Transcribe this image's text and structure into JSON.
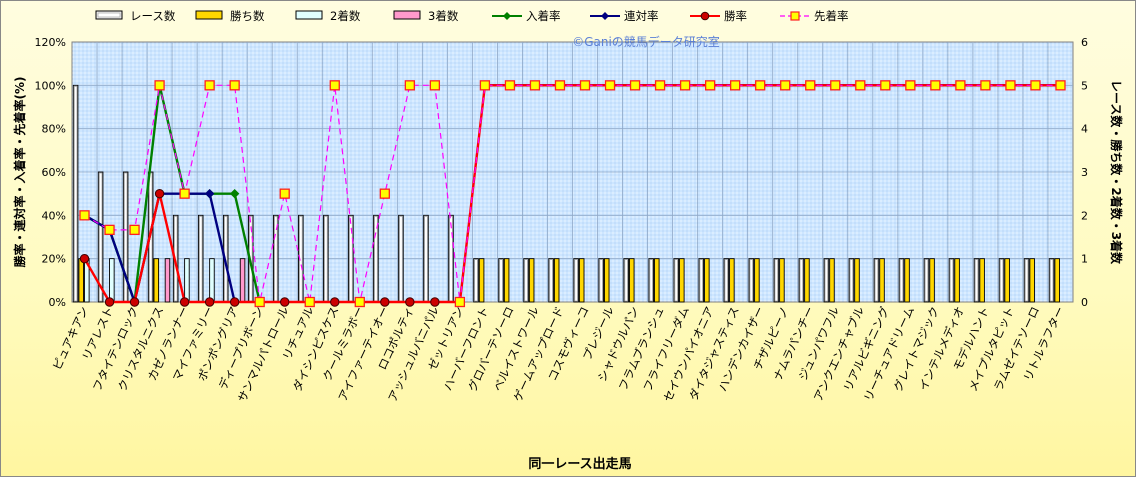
{
  "chart_data": {
    "type": "bar+line",
    "watermark": "©Ganiの競馬データ研究室",
    "xlabel": "同一レース出走馬",
    "ylabel_left": "勝率・連対率・入着率・先着率(%)",
    "ylabel_right": "レース数・勝ち数・2着数・3着数",
    "ylim_left": [
      0,
      120
    ],
    "ylim_right": [
      0,
      6
    ],
    "left_ticks": [
      "0%",
      "20%",
      "40%",
      "60%",
      "80%",
      "100%",
      "120%"
    ],
    "right_ticks": [
      "0",
      "1",
      "2",
      "3",
      "4",
      "5",
      "6"
    ],
    "grid": true,
    "legend_position": "top",
    "categories": [
      "ピュアキアン",
      "リアレスト",
      "フタイテンロック",
      "クリスタルニクス",
      "カゼノランナー",
      "マイファミリー",
      "ポンポングリア",
      "ディープリボーン",
      "サンマルパトロール",
      "リチュアル",
      "ダイシンピスケス",
      "クールミラボー",
      "アイファーテイオー",
      "ロコポルティ",
      "アッシュルバニパル",
      "ゼットリアン",
      "ハーバーフロント",
      "グロバーテソーロ",
      "ベルイストワール",
      "ゲームアップロード",
      "コスモヴィーコ",
      "プレジール",
      "シャドウルパン",
      "フラムブランシュ",
      "フライフリーダム",
      "セイウンパイオニア",
      "ダイタジャスティス",
      "ハンデンカイザー",
      "チザルピーノ",
      "ナムラパンチー",
      "ジュンパワフル",
      "アンクエンチャブル",
      "リアルビギニング",
      "リーチュアドリーム",
      "グレイトマジック",
      "インテルメディオ",
      "モデルハント",
      "メイプルタピット",
      "ラムゼイテソーロ",
      "リトルラフター"
    ],
    "series": [
      {
        "name": "レース数",
        "axis": "right",
        "kind": "bar",
        "color": "#ffffff",
        "values": [
          5,
          3,
          3,
          3,
          2,
          2,
          2,
          2,
          2,
          2,
          2,
          2,
          2,
          2,
          2,
          2,
          1,
          1,
          1,
          1,
          1,
          1,
          1,
          1,
          1,
          1,
          1,
          1,
          1,
          1,
          1,
          1,
          1,
          1,
          1,
          1,
          1,
          1,
          1,
          1
        ]
      },
      {
        "name": "勝ち数",
        "axis": "right",
        "kind": "bar",
        "color": "#ffd700",
        "values": [
          1,
          0,
          0,
          1,
          0,
          0,
          0,
          0,
          0,
          0,
          0,
          0,
          0,
          0,
          0,
          0,
          1,
          1,
          1,
          1,
          1,
          1,
          1,
          1,
          1,
          1,
          1,
          1,
          1,
          1,
          1,
          1,
          1,
          1,
          1,
          1,
          1,
          1,
          1,
          1
        ]
      },
      {
        "name": "2着数",
        "axis": "right",
        "kind": "bar",
        "color": "#e0ffff",
        "values": [
          1,
          1,
          0,
          0,
          1,
          1,
          0,
          0,
          0,
          0,
          0,
          0,
          0,
          0,
          0,
          0,
          0,
          0,
          0,
          0,
          0,
          0,
          0,
          0,
          0,
          0,
          0,
          0,
          0,
          0,
          0,
          0,
          0,
          0,
          0,
          0,
          0,
          0,
          0,
          0
        ]
      },
      {
        "name": "3着数",
        "axis": "right",
        "kind": "bar",
        "color": "#ff99cc",
        "values": [
          0,
          0,
          0,
          1,
          0,
          0,
          1,
          0,
          0,
          0,
          0,
          0,
          0,
          0,
          0,
          0,
          0,
          0,
          0,
          0,
          0,
          0,
          0,
          0,
          0,
          0,
          0,
          0,
          0,
          0,
          0,
          0,
          0,
          0,
          0,
          0,
          0,
          0,
          0,
          0
        ]
      },
      {
        "name": "入着率",
        "axis": "left",
        "kind": "line",
        "color": "#008000",
        "marker": "diamond",
        "values": [
          40,
          33.3,
          0,
          100,
          50,
          50,
          50,
          0,
          null,
          null,
          null,
          null,
          null,
          null,
          null,
          null,
          100,
          100,
          100,
          100,
          100,
          100,
          100,
          100,
          100,
          100,
          100,
          100,
          100,
          100,
          100,
          100,
          100,
          100,
          100,
          100,
          100,
          100,
          100,
          100
        ]
      },
      {
        "name": "連対率",
        "axis": "left",
        "kind": "line",
        "color": "#000080",
        "marker": "diamond",
        "values": [
          40,
          33.3,
          0,
          50,
          50,
          50,
          0,
          null,
          null,
          null,
          null,
          null,
          null,
          null,
          null,
          null,
          100,
          100,
          100,
          100,
          100,
          100,
          100,
          100,
          100,
          100,
          100,
          100,
          100,
          100,
          100,
          100,
          100,
          100,
          100,
          100,
          100,
          100,
          100,
          100
        ]
      },
      {
        "name": "勝率",
        "axis": "left",
        "kind": "line",
        "color": "#ff0000",
        "marker": "circle",
        "values": [
          20,
          0,
          0,
          50,
          0,
          0,
          0,
          0,
          0,
          0,
          0,
          0,
          0,
          0,
          0,
          0,
          100,
          100,
          100,
          100,
          100,
          100,
          100,
          100,
          100,
          100,
          100,
          100,
          100,
          100,
          100,
          100,
          100,
          100,
          100,
          100,
          100,
          100,
          100,
          100
        ]
      },
      {
        "name": "先着率",
        "axis": "left",
        "kind": "dashed",
        "color": "#ff00ff",
        "marker": "square",
        "values": [
          40,
          33.3,
          33.3,
          100,
          50,
          100,
          100,
          0,
          50,
          0,
          100,
          0,
          50,
          100,
          100,
          0,
          100,
          100,
          100,
          100,
          100,
          100,
          100,
          100,
          100,
          100,
          100,
          100,
          100,
          100,
          100,
          100,
          100,
          100,
          100,
          100,
          100,
          100,
          100,
          100
        ]
      }
    ]
  }
}
